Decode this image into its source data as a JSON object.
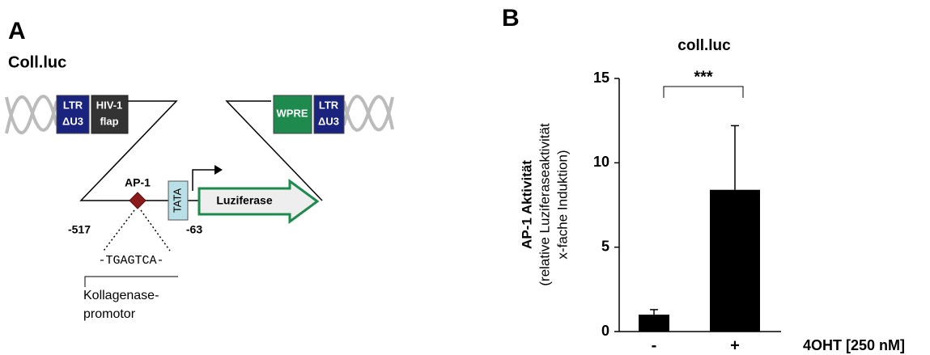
{
  "diagram": {
    "panel_label": "A",
    "title": "Coll.luc",
    "ltr_left": [
      "LTR",
      "ΔU3"
    ],
    "flap": [
      "HIV-1",
      "flap"
    ],
    "wpre": "WPRE",
    "ltr_right": [
      "LTR",
      "ΔU3"
    ],
    "ap1": "AP-1",
    "tata": "TATA",
    "reporter": "Luziferase",
    "pos_start": "-517",
    "pos_end": "-63",
    "sequence": "-TGAGTCA-",
    "promoter": [
      "Kollagenase-",
      "promotor"
    ]
  },
  "chart_data": {
    "type": "bar",
    "panel_label": "B",
    "title": "coll.luc",
    "y_label": [
      "AP-1 Aktivität",
      "(relative Luziferaseaktivität",
      "x-fache Induktion)"
    ],
    "x_label": "4OHT [250 nM]",
    "categories": [
      "-",
      "+"
    ],
    "values": [
      1.0,
      8.4
    ],
    "errors": [
      0.3,
      3.8
    ],
    "color": "#000000",
    "significance": "***",
    "ylim": [
      0,
      15
    ],
    "yticks": [
      0,
      5,
      10,
      15
    ]
  }
}
